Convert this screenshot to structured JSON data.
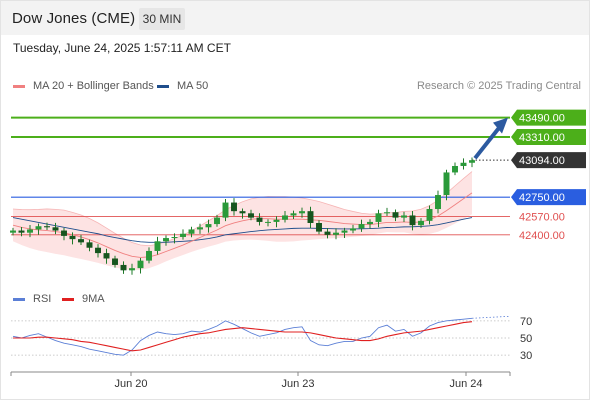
{
  "header": {
    "title": "Dow Jones (CME)",
    "timeframe": "30 MIN",
    "timestamp": "Tuesday, June 24, 2025 1:57:11 AM CET"
  },
  "legend_main": [
    {
      "label": "MA 20 + Bollinger Bands",
      "color": "#f08080"
    },
    {
      "label": "MA 50",
      "color": "#1f4e8c"
    }
  ],
  "legend_rsi": [
    {
      "label": "RSI",
      "color": "#5b7fd6"
    },
    {
      "label": "9MA",
      "color": "#e02020"
    }
  ],
  "copyright": "Research © 2025 Trading Central",
  "chart_data": [
    {
      "type": "candlestick",
      "title": "Dow Jones (CME)",
      "ylim": [
        41980,
        43700
      ],
      "x_ticks": [
        "Jun 20",
        "Jun 23",
        "Jun 24"
      ],
      "levels": [
        {
          "value": 43490,
          "label": "43490.00",
          "kind": "target",
          "color": "#4caf1a"
        },
        {
          "value": 43310,
          "label": "43310.00",
          "kind": "target",
          "color": "#4caf1a"
        },
        {
          "value": 43094,
          "label": "43094.00",
          "kind": "current",
          "color": "#333333"
        },
        {
          "value": 42750,
          "label": "42750.00",
          "kind": "pivot",
          "color": "#2a5ee0"
        },
        {
          "value": 42570,
          "label": "42570.00",
          "kind": "support",
          "color": "#e05050"
        },
        {
          "value": 42400,
          "label": "42400.00",
          "kind": "support",
          "color": "#e05050"
        }
      ],
      "close": [
        42440,
        42420,
        42450,
        42480,
        42470,
        42440,
        42390,
        42360,
        42330,
        42280,
        42230,
        42180,
        42120,
        42070,
        42090,
        42160,
        42250,
        42340,
        42370,
        42380,
        42410,
        42450,
        42470,
        42500,
        42560,
        42700,
        42620,
        42600,
        42560,
        42520,
        42520,
        42540,
        42580,
        42600,
        42620,
        42510,
        42430,
        42400,
        42420,
        42440,
        42460,
        42500,
        42520,
        42600,
        42610,
        42560,
        42580,
        42490,
        42530,
        42640,
        42770,
        42980,
        43040,
        43070,
        43094
      ],
      "ma20": [
        42490,
        42470,
        42455,
        42445,
        42440,
        42430,
        42420,
        42400,
        42380,
        42355,
        42325,
        42290,
        42255,
        42225,
        42200,
        42190,
        42195,
        42215,
        42245,
        42275,
        42305,
        42340,
        42375,
        42410,
        42445,
        42485,
        42510,
        42530,
        42545,
        42550,
        42550,
        42545,
        42545,
        42545,
        42545,
        42540,
        42535,
        42525,
        42515,
        42505,
        42500,
        42495,
        42495,
        42505,
        42515,
        42515,
        42520,
        42515,
        42520,
        42540,
        42575,
        42625,
        42680,
        42735,
        42790
      ],
      "ma50": [
        42560,
        42545,
        42530,
        42515,
        42500,
        42485,
        42470,
        42455,
        42440,
        42425,
        42410,
        42390,
        42375,
        42360,
        42345,
        42335,
        42330,
        42330,
        42330,
        42335,
        42340,
        42345,
        42355,
        42365,
        42380,
        42400,
        42410,
        42420,
        42430,
        42438,
        42445,
        42450,
        42455,
        42460,
        42462,
        42462,
        42460,
        42458,
        42456,
        42455,
        42455,
        42456,
        42458,
        42462,
        42468,
        42470,
        42474,
        42475,
        42478,
        42484,
        42494,
        42510,
        42528,
        42545,
        42560
      ]
    },
    {
      "type": "line",
      "title": "RSI",
      "ylim": [
        15,
        85
      ],
      "y_ticks": [
        70,
        50,
        30
      ],
      "series": [
        {
          "name": "RSI",
          "values": [
            52,
            50,
            53,
            55,
            51,
            47,
            44,
            42,
            40,
            37,
            35,
            33,
            31,
            30,
            36,
            47,
            53,
            57,
            55,
            54,
            55,
            58,
            57,
            60,
            64,
            70,
            66,
            61,
            56,
            52,
            54,
            56,
            60,
            62,
            63,
            47,
            42,
            41,
            44,
            46,
            46,
            50,
            52,
            62,
            65,
            58,
            60,
            52,
            56,
            64,
            68,
            70,
            71,
            72,
            73
          ]
        },
        {
          "name": "9MA",
          "values": [
            50,
            50,
            50,
            51,
            51,
            50,
            49,
            48,
            46,
            45,
            43,
            41,
            39,
            37,
            35,
            36,
            39,
            42,
            45,
            48,
            51,
            53,
            55,
            56,
            58,
            60,
            61,
            62,
            61,
            60,
            59,
            58,
            57,
            57,
            57,
            56,
            54,
            52,
            50,
            49,
            48,
            47,
            47,
            49,
            52,
            54,
            56,
            57,
            58,
            60,
            62,
            64,
            66,
            68,
            69
          ]
        }
      ]
    }
  ]
}
